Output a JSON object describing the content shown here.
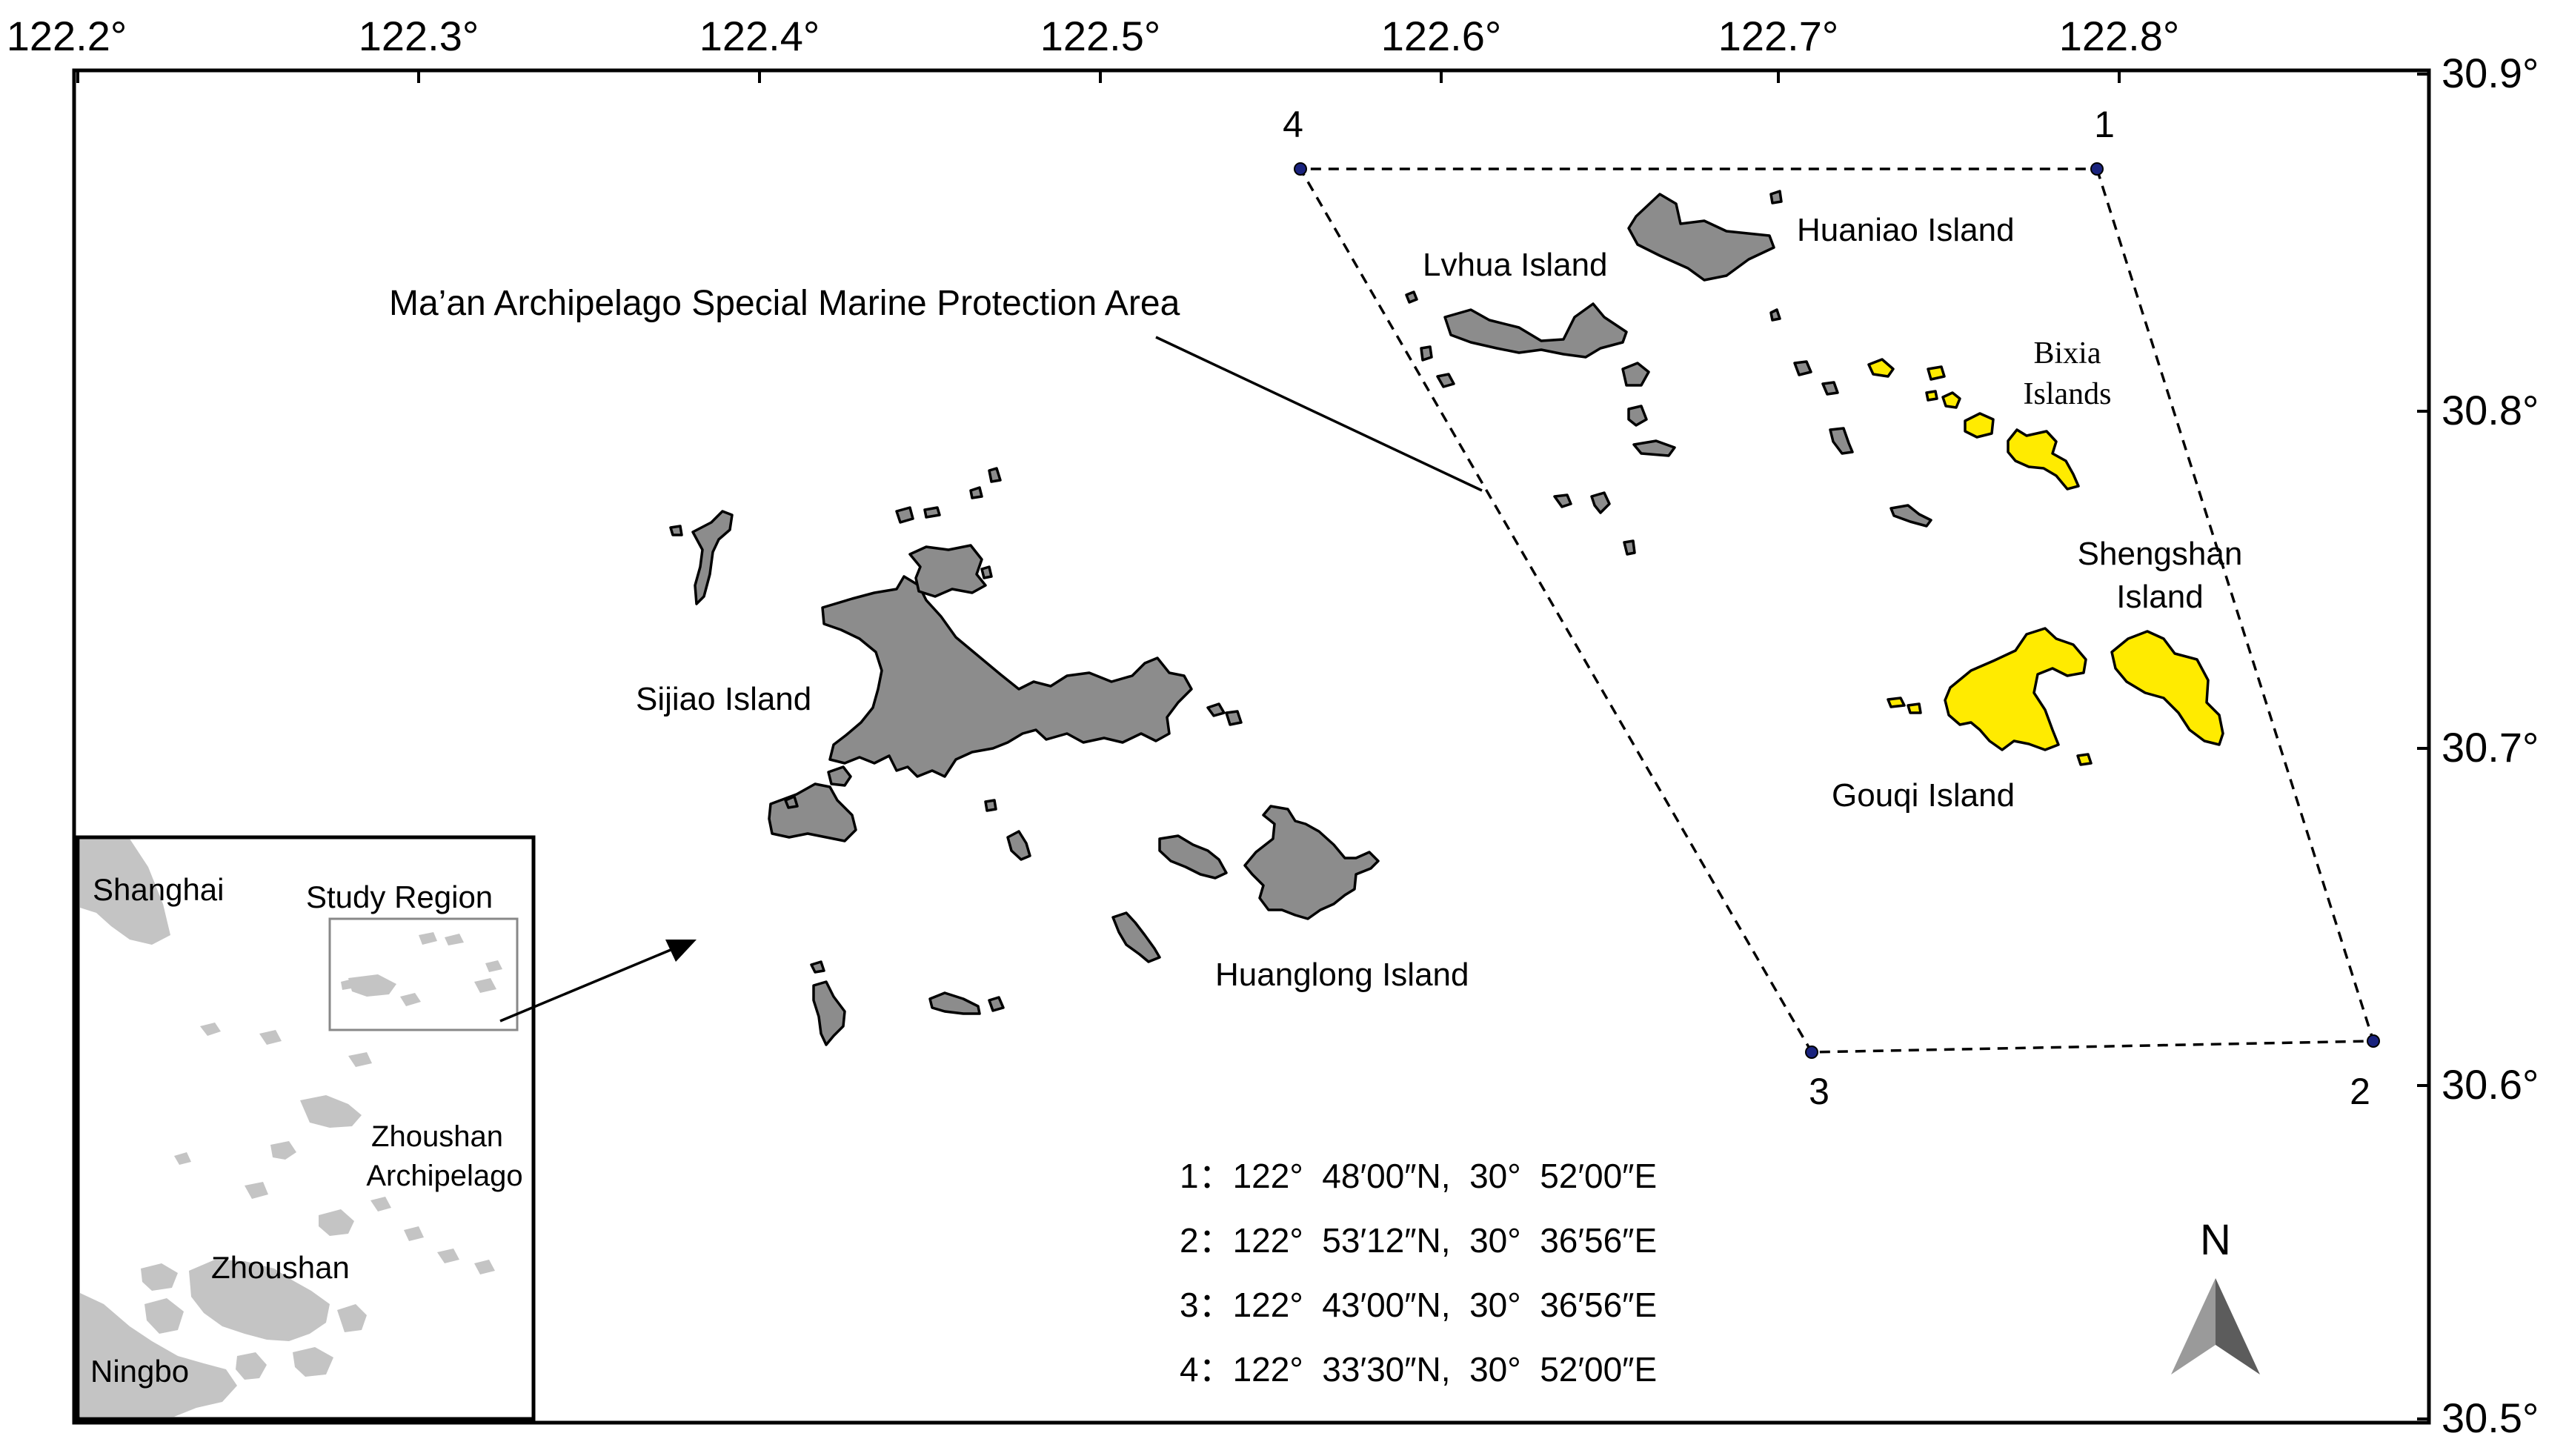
{
  "map": {
    "x_ticks": [
      "122.2°",
      "122.3°",
      "122.4°",
      "122.5°",
      "122.6°",
      "122.7°",
      "122.8°"
    ],
    "y_ticks": [
      "30.9°",
      "30.8°",
      "30.7°",
      "30.6°",
      "30.5°"
    ],
    "protection_area_label": "Ma’an Archipelago Special Marine Protection Area",
    "vertex_labels": [
      "1",
      "2",
      "3",
      "4"
    ],
    "islands": {
      "huaniao": "Huaniao Island",
      "lvhua": "Lvhua Island",
      "bixia_line1": "Bixia",
      "bixia_line2": "Islands",
      "shengshan_line1": "Shengshan",
      "shengshan_line2": "Island",
      "gouqi": "Gouqi Island",
      "sijiao": "Sijiao Island",
      "huanglong": "Huanglong Island"
    },
    "coordinates": [
      "1：122°  48′00″N,  30°  52′00″E",
      "2：122°  53′12″N,  30°  36′56″E",
      "3：122°  43′00″N,  30°  36′56″E",
      "4：122°  33′30″N,  30°  52′00″E"
    ],
    "north_label": "N",
    "colors": {
      "island_grey": "#8c8c8c",
      "island_yellow": "#ffeb00",
      "inset_land": "#c4c4c4",
      "vertex_dot": "#1a237e"
    }
  },
  "inset": {
    "shanghai": "Shanghai",
    "study_region": "Study Region",
    "zhoushan_archipelago_line1": "Zhoushan",
    "zhoushan_archipelago_line2": "Archipelago",
    "zhoushan": "Zhoushan",
    "ningbo": "Ningbo"
  }
}
